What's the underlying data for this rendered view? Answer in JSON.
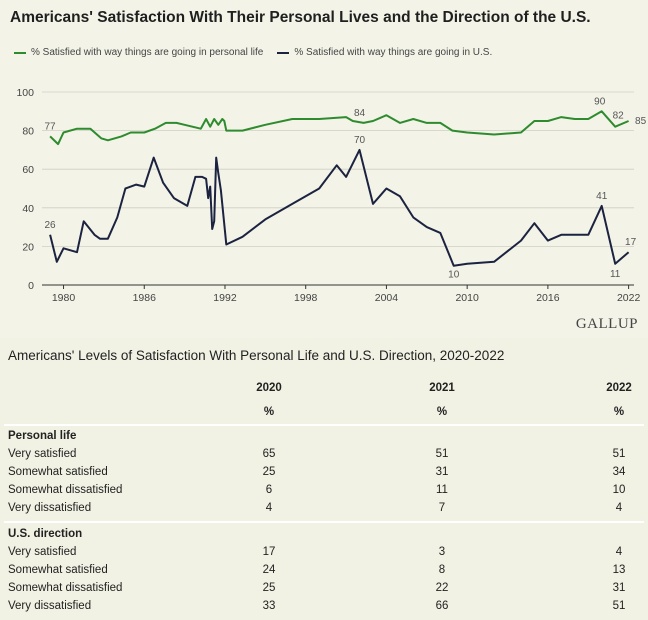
{
  "chart_title": "Americans' Satisfaction With Their Personal Lives and the Direction of the U.S.",
  "legend": {
    "personal": "% Satisfied with way things are going in personal life",
    "us": "% Satisfied with way things are going in U.S."
  },
  "brand": "GALLUP",
  "colors": {
    "personal": "#2e8b2e",
    "us": "#1b2340",
    "grid": "#cfcfc2",
    "axis": "#333333"
  },
  "chart_data": {
    "type": "line",
    "title": "Americans' Satisfaction With Their Personal Lives and the Direction of the U.S.",
    "xlim": [
      1978.4,
      2022.4
    ],
    "ylim": [
      0,
      100
    ],
    "x_ticks": [
      1980,
      1986,
      1992,
      1998,
      2004,
      2010,
      2016,
      2022
    ],
    "y_ticks": [
      0,
      20,
      40,
      60,
      80,
      100
    ],
    "grid": "horizontal",
    "legend_position": "top-left",
    "series": [
      {
        "key": "personal",
        "name": "% Satisfied with way things are going in personal life",
        "x": [
          1979,
          1979.6,
          1980,
          1981,
          1982,
          1982.8,
          1983.3,
          1984.3,
          1985,
          1986,
          1986.8,
          1987.6,
          1988.4,
          1989,
          1990.2,
          1990.6,
          1990.9,
          1991.2,
          1991.5,
          1991.8,
          1991.95,
          1992.1,
          1993.3,
          1995,
          1997,
          1999,
          2001,
          2001.5,
          2002.3,
          2003,
          2004,
          2005,
          2006,
          2007,
          2008,
          2008.9,
          2010,
          2012,
          2014,
          2015,
          2016,
          2017,
          2018,
          2019,
          2020,
          2021,
          2022
        ],
        "values": [
          77,
          73,
          79,
          81,
          81,
          76,
          75,
          77,
          79,
          79,
          81,
          84,
          84,
          83,
          81,
          86,
          82,
          86,
          83,
          86,
          85,
          80,
          80,
          83,
          86,
          86,
          87,
          85,
          84,
          85,
          88,
          84,
          86,
          84,
          84,
          80,
          79,
          78,
          79,
          85,
          85,
          87,
          86,
          86,
          90,
          82,
          85
        ]
      },
      {
        "key": "us",
        "name": "% Satisfied with way things are going in U.S.",
        "x": [
          1979,
          1979.5,
          1980,
          1981,
          1981.5,
          1982.3,
          1982.7,
          1983.3,
          1984,
          1984.6,
          1985.4,
          1986,
          1986.7,
          1987.4,
          1988.2,
          1989.2,
          1989.8,
          1990.3,
          1990.6,
          1990.75,
          1990.9,
          1991.05,
          1991.2,
          1991.35,
          1991.5,
          1991.7,
          1992.1,
          1993.3,
          1995,
          1997,
          1999,
          2000.3,
          2001,
          2002,
          2003,
          2004,
          2005,
          2006,
          2007,
          2008,
          2009,
          2010,
          2012,
          2014,
          2015,
          2016,
          2017,
          2018,
          2019,
          2020,
          2021,
          2022
        ],
        "values": [
          26,
          12,
          19,
          17,
          33,
          26,
          24,
          24,
          35,
          50,
          52,
          51,
          66,
          53,
          45,
          41,
          56,
          56,
          55,
          45,
          51,
          29,
          33,
          66,
          58,
          49,
          21,
          25,
          34,
          42,
          50,
          62,
          56,
          70,
          42,
          50,
          46,
          35,
          30,
          27,
          10,
          11,
          12,
          23,
          32,
          23,
          26,
          26,
          26,
          41,
          11,
          17
        ]
      }
    ],
    "annotations": [
      {
        "series": "personal",
        "x": 1979,
        "y": 77,
        "text": "77"
      },
      {
        "series": "personal",
        "x": 2002,
        "y": 84,
        "text": "84"
      },
      {
        "series": "personal",
        "x": 2020,
        "y": 90,
        "text": "90"
      },
      {
        "series": "personal",
        "x": 2021,
        "y": 82,
        "text": "82"
      },
      {
        "series": "personal",
        "x": 2022,
        "y": 85,
        "text": "85"
      },
      {
        "series": "us",
        "x": 1979,
        "y": 26,
        "text": "26"
      },
      {
        "series": "us",
        "x": 2002,
        "y": 70,
        "text": "70"
      },
      {
        "series": "us",
        "x": 2009,
        "y": 10,
        "text": "10"
      },
      {
        "series": "us",
        "x": 2020,
        "y": 41,
        "text": "41"
      },
      {
        "series": "us",
        "x": 2021,
        "y": 11,
        "text": "11"
      },
      {
        "series": "us",
        "x": 2022,
        "y": 17,
        "text": "17"
      }
    ]
  },
  "table": {
    "title": "Americans' Levels of Satisfaction With Personal Life and U.S. Direction, 2020-2022",
    "years": [
      "2020",
      "2021",
      "2022"
    ],
    "unit": "%",
    "sections": [
      {
        "heading": "Personal life",
        "rows": [
          {
            "label": "Very satisfied",
            "values": [
              "65",
              "51",
              "51"
            ]
          },
          {
            "label": "Somewhat satisfied",
            "values": [
              "25",
              "31",
              "34"
            ]
          },
          {
            "label": "Somewhat dissatisfied",
            "values": [
              "6",
              "11",
              "10"
            ]
          },
          {
            "label": "Very dissatisfied",
            "values": [
              "4",
              "7",
              "4"
            ]
          }
        ]
      },
      {
        "heading": "U.S. direction",
        "rows": [
          {
            "label": "Very satisfied",
            "values": [
              "17",
              "3",
              "4"
            ]
          },
          {
            "label": "Somewhat satisfied",
            "values": [
              "24",
              "8",
              "13"
            ]
          },
          {
            "label": "Somewhat dissatisfied",
            "values": [
              "25",
              "22",
              "31"
            ]
          },
          {
            "label": "Very dissatisfied",
            "values": [
              "33",
              "66",
              "51"
            ]
          }
        ]
      }
    ]
  }
}
